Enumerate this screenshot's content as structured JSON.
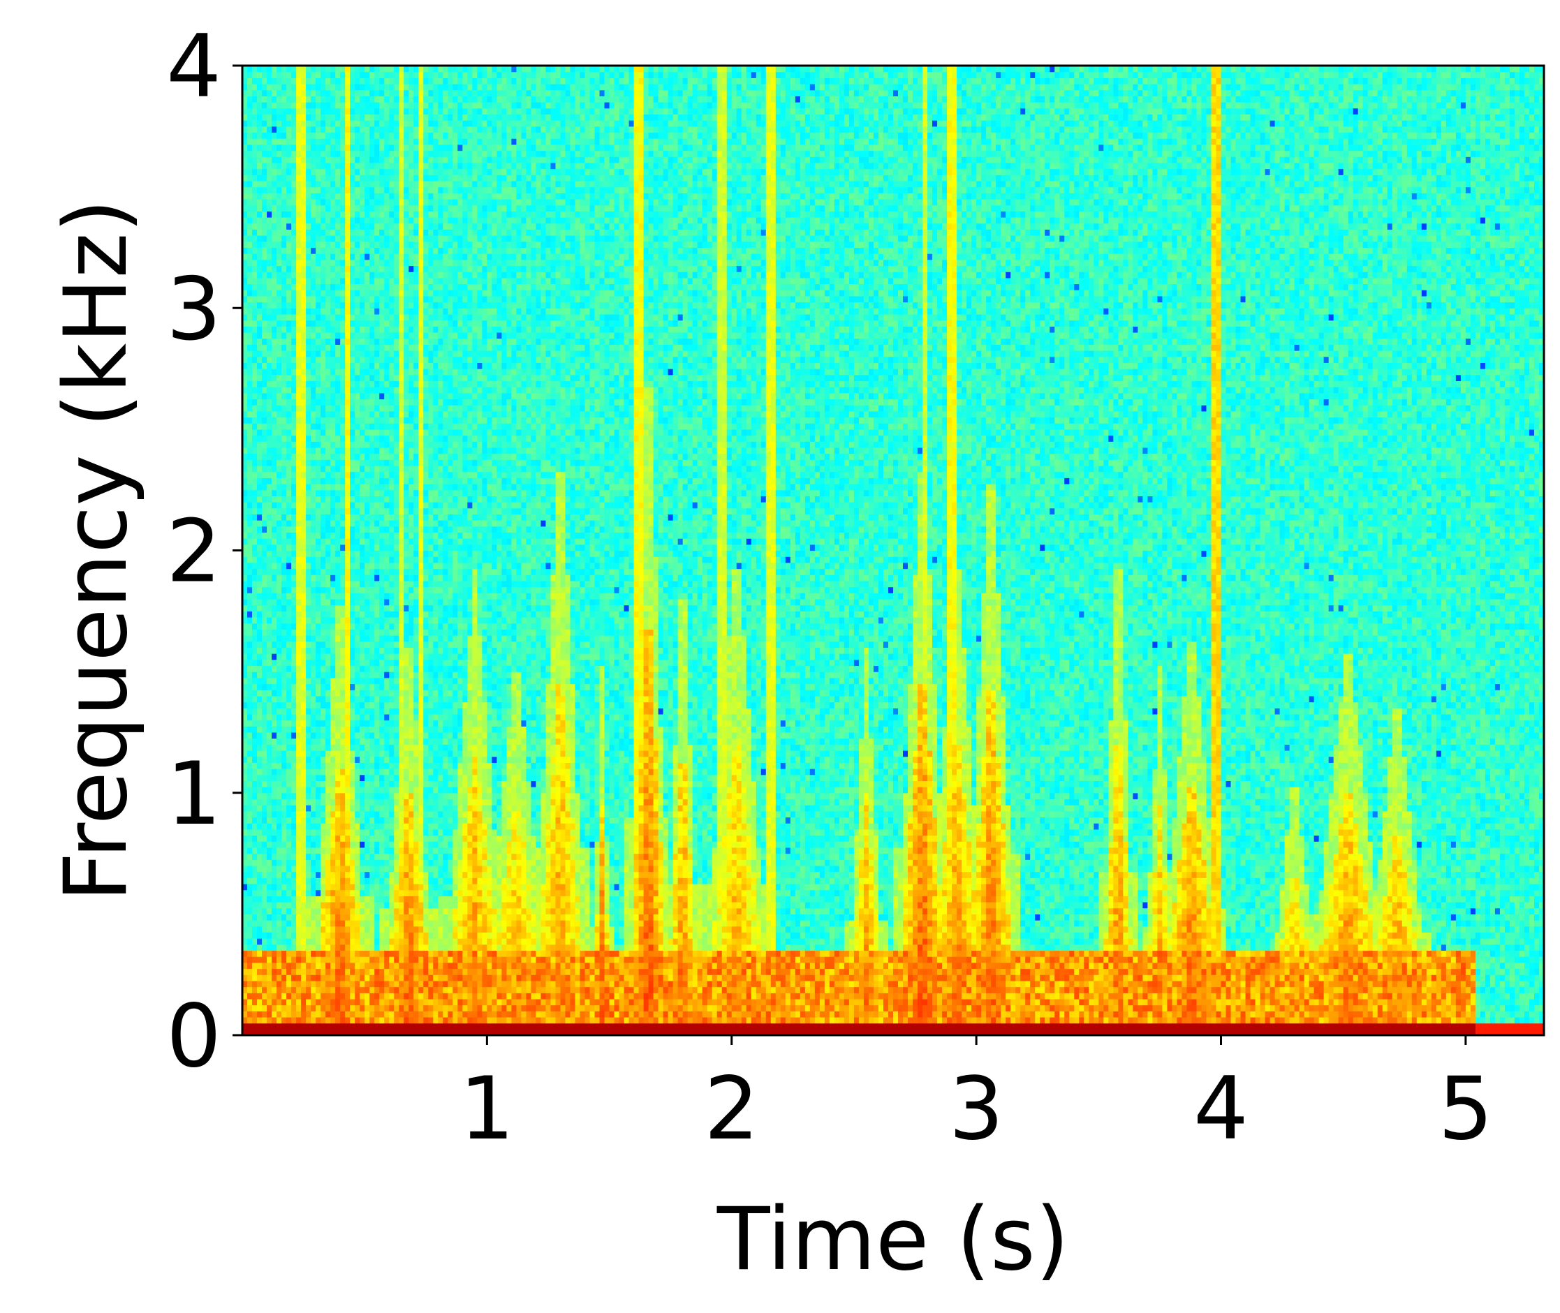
{
  "chart_data": {
    "type": "heatmap",
    "xlabel": "Time (s)",
    "ylabel": "Frequency (kHz)",
    "xlim": [
      0,
      5.32
    ],
    "ylim": [
      0,
      4
    ],
    "x_ticks": [
      1,
      2,
      3,
      4,
      5
    ],
    "y_ticks": [
      0,
      1,
      2,
      3,
      4
    ],
    "x_tick_labels": [
      "1",
      "2",
      "3",
      "4",
      "5"
    ],
    "y_tick_labels": [
      "0",
      "1",
      "2",
      "3",
      "4"
    ],
    "colormap": "jet",
    "signal_end_time": 5.03,
    "background_level": 0.42,
    "low_band": {
      "freq_max": 0.35,
      "level": 0.8
    },
    "dc_band": {
      "freq_max": 0.05,
      "level": 0.95
    },
    "events": [
      {
        "time": 0.4,
        "freq_max": 1.2,
        "level": 0.8,
        "width": 0.09
      },
      {
        "time": 0.68,
        "freq_max": 1.1,
        "level": 0.8,
        "width": 0.08
      },
      {
        "time": 0.95,
        "freq_max": 1.2,
        "level": 0.76,
        "width": 0.1
      },
      {
        "time": 1.12,
        "freq_max": 1.0,
        "level": 0.74,
        "width": 0.1
      },
      {
        "time": 1.3,
        "freq_max": 1.6,
        "level": 0.76,
        "width": 0.08
      },
      {
        "time": 1.47,
        "freq_max": 0.95,
        "level": 0.8,
        "width": 0.03
      },
      {
        "time": 1.66,
        "freq_max": 1.9,
        "level": 0.82,
        "width": 0.06
      },
      {
        "time": 1.8,
        "freq_max": 1.3,
        "level": 0.78,
        "width": 0.05
      },
      {
        "time": 2.02,
        "freq_max": 1.3,
        "level": 0.74,
        "width": 0.1
      },
      {
        "time": 2.55,
        "freq_max": 1.0,
        "level": 0.76,
        "width": 0.06
      },
      {
        "time": 2.78,
        "freq_max": 1.6,
        "level": 0.82,
        "width": 0.08
      },
      {
        "time": 2.92,
        "freq_max": 1.3,
        "level": 0.78,
        "width": 0.09
      },
      {
        "time": 3.06,
        "freq_max": 1.55,
        "level": 0.8,
        "width": 0.08
      },
      {
        "time": 3.58,
        "freq_max": 1.4,
        "level": 0.78,
        "width": 0.05
      },
      {
        "time": 3.75,
        "freq_max": 0.95,
        "level": 0.74,
        "width": 0.05
      },
      {
        "time": 3.88,
        "freq_max": 1.1,
        "level": 0.8,
        "width": 0.1
      },
      {
        "time": 4.3,
        "freq_max": 0.7,
        "level": 0.74,
        "width": 0.08
      },
      {
        "time": 4.52,
        "freq_max": 1.05,
        "level": 0.78,
        "width": 0.12
      },
      {
        "time": 4.72,
        "freq_max": 0.9,
        "level": 0.76,
        "width": 0.1
      }
    ],
    "vertical_streaks": [
      {
        "time": 0.24,
        "level": 0.6
      },
      {
        "time": 0.43,
        "level": 0.62
      },
      {
        "time": 0.65,
        "level": 0.58
      },
      {
        "time": 0.73,
        "level": 0.6
      },
      {
        "time": 1.62,
        "level": 0.62
      },
      {
        "time": 1.96,
        "level": 0.58
      },
      {
        "time": 2.16,
        "level": 0.6
      },
      {
        "time": 2.79,
        "level": 0.58
      },
      {
        "time": 2.9,
        "level": 0.62
      },
      {
        "time": 3.98,
        "level": 0.66
      }
    ]
  }
}
